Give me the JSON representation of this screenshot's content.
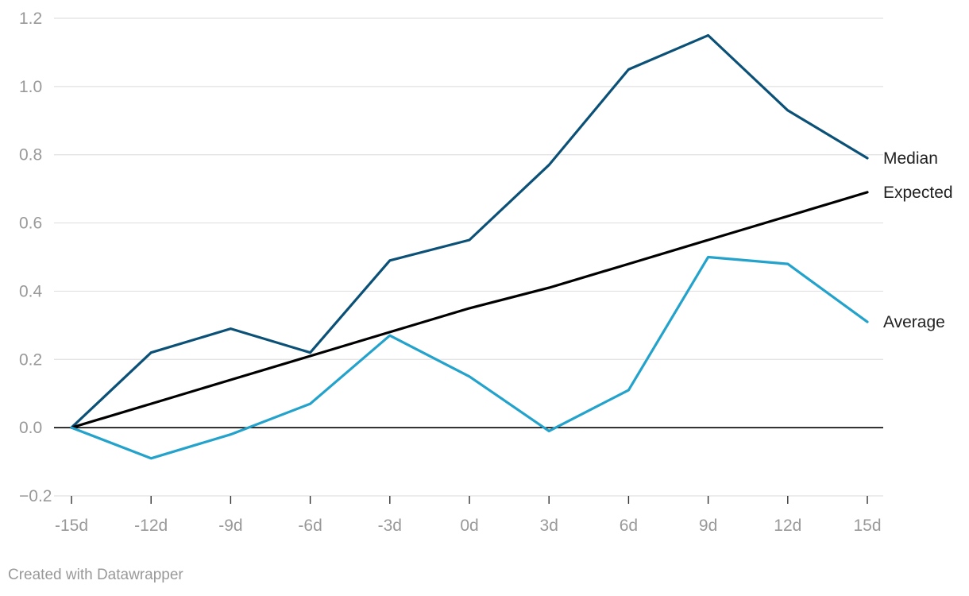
{
  "chart_data": {
    "type": "line",
    "title": "",
    "xlabel": "",
    "ylabel": "",
    "categories": [
      "-15d",
      "-12d",
      "-9d",
      "-6d",
      "-3d",
      "0d",
      "3d",
      "6d",
      "9d",
      "12d",
      "15d"
    ],
    "y_ticks": [
      1.2,
      1.0,
      0.8,
      0.6,
      0.4,
      0.2,
      0.0,
      -0.2
    ],
    "y_tick_labels": [
      "1.2",
      "1.0",
      "0.8",
      "0.6",
      "0.4",
      "0.2",
      "0.0",
      "−0.2"
    ],
    "ylim": [
      -0.2,
      1.2
    ],
    "grid": true,
    "series": [
      {
        "name": "Median",
        "color": "#0b5177",
        "values": [
          0.0,
          0.22,
          0.29,
          0.22,
          0.49,
          0.55,
          0.77,
          1.05,
          1.15,
          0.93,
          0.79
        ]
      },
      {
        "name": "Expected",
        "color": "#000000",
        "values": [
          0.0,
          0.07,
          0.14,
          0.21,
          0.28,
          0.35,
          0.41,
          0.48,
          0.55,
          0.62,
          0.69
        ]
      },
      {
        "name": "Average",
        "color": "#23a2cc",
        "values": [
          0.0,
          -0.09,
          -0.02,
          0.07,
          0.27,
          0.15,
          -0.01,
          0.11,
          0.5,
          0.48,
          0.31
        ]
      }
    ]
  },
  "footer": {
    "credit": "Created with Datawrapper"
  }
}
